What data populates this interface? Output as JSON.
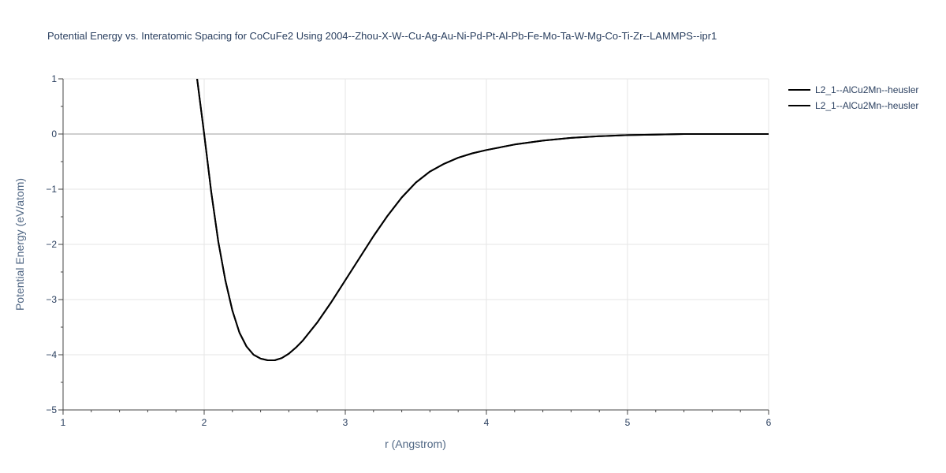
{
  "chart_data": {
    "type": "line",
    "title": "Potential Energy vs. Interatomic Spacing for CoCuFe2 Using 2004--Zhou-X-W--Cu-Ag-Au-Ni-Pd-Pt-Al-Pb-Fe-Mo-Ta-W-Mg-Co-Ti-Zr--LAMMPS--ipr1",
    "xlabel": "r (Angstrom)",
    "ylabel": "Potential Energy (eV/atom)",
    "xlim": [
      1,
      6
    ],
    "ylim": [
      -5,
      1
    ],
    "x_ticks": [
      "1",
      "2",
      "3",
      "4",
      "5",
      "6"
    ],
    "y_ticks": [
      "1",
      "0",
      "−1",
      "−2",
      "−3",
      "−4",
      "−5"
    ],
    "grid": true,
    "legend_position": "top-right",
    "series": [
      {
        "name": "L2_1--AlCu2Mn--heusler",
        "color": "#000000",
        "x": [
          1.95,
          2.0,
          2.05,
          2.1,
          2.15,
          2.2,
          2.25,
          2.3,
          2.35,
          2.4,
          2.45,
          2.5,
          2.55,
          2.6,
          2.65,
          2.7,
          2.8,
          2.9,
          3.0,
          3.1,
          3.2,
          3.3,
          3.4,
          3.5,
          3.6,
          3.7,
          3.8,
          3.9,
          4.0,
          4.2,
          4.4,
          4.6,
          4.8,
          5.0,
          5.2,
          5.4,
          5.6,
          6.0
        ],
        "y": [
          1.0,
          0.0,
          -1.05,
          -1.95,
          -2.65,
          -3.2,
          -3.6,
          -3.85,
          -4.0,
          -4.07,
          -4.1,
          -4.1,
          -4.06,
          -3.98,
          -3.87,
          -3.74,
          -3.42,
          -3.05,
          -2.65,
          -2.25,
          -1.85,
          -1.48,
          -1.15,
          -0.88,
          -0.68,
          -0.54,
          -0.43,
          -0.35,
          -0.29,
          -0.19,
          -0.12,
          -0.07,
          -0.04,
          -0.02,
          -0.01,
          0.0,
          0.0,
          0.0
        ]
      },
      {
        "name": "L2_1--AlCu2Mn--heusler",
        "color": "#000000",
        "x": [
          1.95,
          2.0,
          2.05,
          2.1,
          2.15,
          2.2,
          2.25,
          2.3,
          2.35,
          2.4,
          2.45,
          2.5,
          2.55,
          2.6,
          2.65,
          2.7,
          2.8,
          2.9,
          3.0,
          3.1,
          3.2,
          3.3,
          3.4,
          3.5,
          3.6,
          3.7,
          3.8,
          3.9,
          4.0,
          4.2,
          4.4,
          4.6,
          4.8,
          5.0,
          5.2,
          5.4,
          5.6,
          6.0
        ],
        "y": [
          1.0,
          0.0,
          -1.05,
          -1.95,
          -2.65,
          -3.2,
          -3.6,
          -3.85,
          -4.0,
          -4.07,
          -4.1,
          -4.1,
          -4.06,
          -3.98,
          -3.87,
          -3.74,
          -3.42,
          -3.05,
          -2.65,
          -2.25,
          -1.85,
          -1.48,
          -1.15,
          -0.88,
          -0.68,
          -0.54,
          -0.43,
          -0.35,
          -0.29,
          -0.19,
          -0.12,
          -0.07,
          -0.04,
          -0.02,
          -0.01,
          0.0,
          0.0,
          0.0
        ]
      }
    ]
  }
}
